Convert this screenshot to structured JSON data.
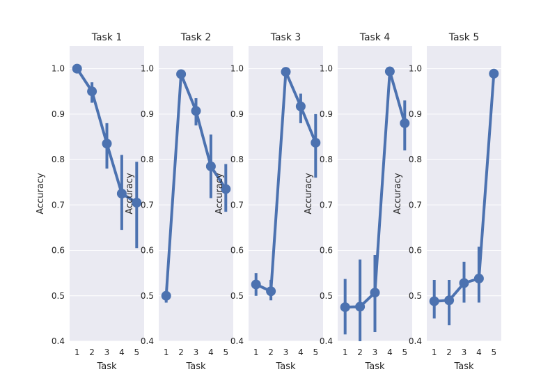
{
  "chart_data": [
    {
      "type": "line",
      "title": "Task 1",
      "xlabel": "Task",
      "ylabel": "Accuracy",
      "categories": [
        "1",
        "2",
        "3",
        "4",
        "5"
      ],
      "ylim": [
        0.4,
        1.05
      ],
      "yticks": [
        "0.4",
        "0.5",
        "0.6",
        "0.7",
        "0.8",
        "0.9",
        "1.0"
      ],
      "values": [
        1.0,
        0.95,
        0.835,
        0.725,
        0.705
      ],
      "ci_low": [
        1.0,
        0.925,
        0.78,
        0.645,
        0.605
      ],
      "ci_high": [
        1.0,
        0.97,
        0.88,
        0.81,
        0.795
      ],
      "color": "#4c72b0",
      "grid": true
    },
    {
      "type": "line",
      "title": "Task 2",
      "xlabel": "Task",
      "ylabel": "Accuracy",
      "categories": [
        "1",
        "2",
        "3",
        "4",
        "5"
      ],
      "ylim": [
        0.4,
        1.05
      ],
      "yticks": [
        "0.4",
        "0.5",
        "0.6",
        "0.7",
        "0.8",
        "0.9",
        "1.0"
      ],
      "values": [
        0.5,
        0.988,
        0.907,
        0.785,
        0.735
      ],
      "ci_low": [
        0.485,
        0.98,
        0.875,
        0.715,
        0.685
      ],
      "ci_high": [
        0.51,
        0.995,
        0.935,
        0.855,
        0.79
      ],
      "color": "#4c72b0",
      "grid": true
    },
    {
      "type": "line",
      "title": "Task 3",
      "xlabel": "Task",
      "ylabel": "Accuracy",
      "categories": [
        "1",
        "2",
        "3",
        "4",
        "5"
      ],
      "ylim": [
        0.4,
        1.05
      ],
      "yticks": [
        "0.4",
        "0.5",
        "0.6",
        "0.7",
        "0.8",
        "0.9",
        "1.0"
      ],
      "values": [
        0.525,
        0.51,
        0.993,
        0.917,
        0.837
      ],
      "ci_low": [
        0.5,
        0.49,
        0.985,
        0.88,
        0.76
      ],
      "ci_high": [
        0.55,
        0.535,
        0.998,
        0.945,
        0.9
      ],
      "color": "#4c72b0",
      "grid": true
    },
    {
      "type": "line",
      "title": "Task 4",
      "xlabel": "Task",
      "ylabel": "Accuracy",
      "categories": [
        "1",
        "2",
        "3",
        "4",
        "5"
      ],
      "ylim": [
        0.4,
        1.05
      ],
      "yticks": [
        "0.4",
        "0.5",
        "0.6",
        "0.7",
        "0.8",
        "0.9",
        "1.0"
      ],
      "values": [
        0.475,
        0.476,
        0.507,
        0.994,
        0.88
      ],
      "ci_low": [
        0.415,
        0.39,
        0.42,
        0.988,
        0.82
      ],
      "ci_high": [
        0.537,
        0.58,
        0.59,
        0.998,
        0.93
      ],
      "color": "#4c72b0",
      "grid": true
    },
    {
      "type": "line",
      "title": "Task 5",
      "xlabel": "Task",
      "ylabel": "Accuracy",
      "categories": [
        "1",
        "2",
        "3",
        "4",
        "5"
      ],
      "ylim": [
        0.4,
        1.05
      ],
      "yticks": [
        "0.4",
        "0.5",
        "0.6",
        "0.7",
        "0.8",
        "0.9",
        "1.0"
      ],
      "values": [
        0.488,
        0.49,
        0.528,
        0.538,
        0.989
      ],
      "ci_low": [
        0.45,
        0.435,
        0.485,
        0.485,
        0.982
      ],
      "ci_high": [
        0.535,
        0.535,
        0.575,
        0.608,
        0.995
      ],
      "color": "#4c72b0",
      "grid": true
    }
  ]
}
